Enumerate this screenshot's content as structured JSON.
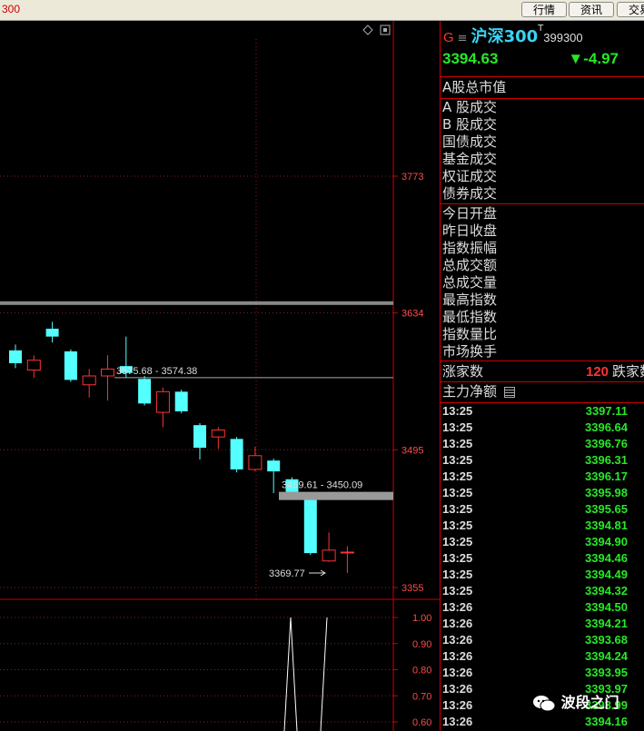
{
  "topbar": {
    "code": "300",
    "buttons": [
      "行情",
      "资讯",
      "交易"
    ]
  },
  "panel": {
    "market_tag": "G",
    "menu_icon": "≡",
    "name": "沪深300",
    "superscript": "T",
    "code": "399300",
    "price": "3394.63",
    "change": "▼-4.97",
    "a_share_cap": "A股总市值",
    "trade_labels": [
      "A 股成交",
      "B 股成交",
      "国债成交",
      "基金成交",
      "权证成交",
      "债券成交"
    ],
    "index_labels": [
      "今日开盘",
      "昨日收盘",
      "指数振幅",
      "总成交额",
      "总成交量",
      "最高指数",
      "最低指数",
      "指数量比",
      "市场换手"
    ],
    "rise_label": "涨家数",
    "rise_count": "120",
    "fall_label": "跌家数",
    "main_net_label": "主力净额",
    "ticks": [
      {
        "time": "13:25",
        "value": "3397.11"
      },
      {
        "time": "13:25",
        "value": "3396.64"
      },
      {
        "time": "13:25",
        "value": "3396.76"
      },
      {
        "time": "13:25",
        "value": "3396.31"
      },
      {
        "time": "13:25",
        "value": "3396.17"
      },
      {
        "time": "13:25",
        "value": "3395.98"
      },
      {
        "time": "13:25",
        "value": "3395.65"
      },
      {
        "time": "13:25",
        "value": "3394.81"
      },
      {
        "time": "13:25",
        "value": "3394.90"
      },
      {
        "time": "13:25",
        "value": "3394.46"
      },
      {
        "time": "13:25",
        "value": "3394.49"
      },
      {
        "time": "13:25",
        "value": "3394.32"
      },
      {
        "time": "13:26",
        "value": "3394.50"
      },
      {
        "time": "13:26",
        "value": "3394.21"
      },
      {
        "time": "13:26",
        "value": "3393.68"
      },
      {
        "time": "13:26",
        "value": "3394.24"
      },
      {
        "time": "13:26",
        "value": "3393.95"
      },
      {
        "time": "13:26",
        "value": "3393.97"
      },
      {
        "time": "13:26",
        "value": "3393.99"
      },
      {
        "time": "13:26",
        "value": "3394.16"
      }
    ]
  },
  "watermark": "波段之门",
  "colors": {
    "up": "#ff3333",
    "down": "#54ffff",
    "zone": "#888888",
    "accent_green": "#27e827"
  },
  "chart_data": {
    "type": "candlestick",
    "y_ticks": [
      3773,
      3634,
      3495,
      3355
    ],
    "ylim": [
      3355,
      3773
    ],
    "candles": [
      {
        "o": 3596,
        "c": 3583,
        "h": 3602,
        "l": 3578
      },
      {
        "o": 3576,
        "c": 3586,
        "h": 3591,
        "l": 3568
      },
      {
        "o": 3618,
        "c": 3610,
        "h": 3625,
        "l": 3604
      },
      {
        "o": 3595,
        "c": 3566,
        "h": 3597,
        "l": 3564
      },
      {
        "o": 3561,
        "c": 3570,
        "h": 3577,
        "l": 3548
      },
      {
        "o": 3570,
        "c": 3577,
        "h": 3591,
        "l": 3545
      },
      {
        "o": 3580,
        "c": 3573,
        "h": 3610,
        "l": 3568
      },
      {
        "o": 3567,
        "c": 3542,
        "h": 3570,
        "l": 3540
      },
      {
        "o": 3533,
        "c": 3554,
        "h": 3558,
        "l": 3518
      },
      {
        "o": 3554,
        "c": 3534,
        "h": 3556,
        "l": 3532
      },
      {
        "o": 3520,
        "c": 3497,
        "h": 3522,
        "l": 3485
      },
      {
        "o": 3508,
        "c": 3515,
        "h": 3518,
        "l": 3496
      },
      {
        "o": 3506,
        "c": 3475,
        "h": 3508,
        "l": 3472
      },
      {
        "o": 3475,
        "c": 3489,
        "h": 3498,
        "l": 3473
      },
      {
        "o": 3484,
        "c": 3473,
        "h": 3486,
        "l": 3451
      },
      {
        "o": 3465,
        "c": 3446,
        "h": 3467,
        "l": 3444
      },
      {
        "o": 3447,
        "c": 3390,
        "h": 3449,
        "l": 3388
      },
      {
        "o": 3382,
        "c": 3393,
        "h": 3411,
        "l": 3381
      },
      {
        "o": 3391,
        "c": 3391,
        "h": 3397,
        "l": 3369.77
      }
    ],
    "zones": [
      {
        "high": 3575.68,
        "low": 3574.38,
        "label": "3575.68 - 3574.38"
      },
      {
        "high": 3459.61,
        "low": 3450.09,
        "label": "3459.61 - 3450.09"
      }
    ],
    "upper_zone_price": 3644,
    "low_marker": {
      "value": 3369.77,
      "label": "3369.77"
    },
    "indicator": {
      "y_ticks": [
        "1.00",
        "0.90",
        "0.80",
        "0.70",
        "0.60"
      ],
      "ylim": [
        0.57,
        1.03
      ],
      "series": [
        1.0,
        0.55,
        0.55,
        1.0
      ]
    }
  }
}
